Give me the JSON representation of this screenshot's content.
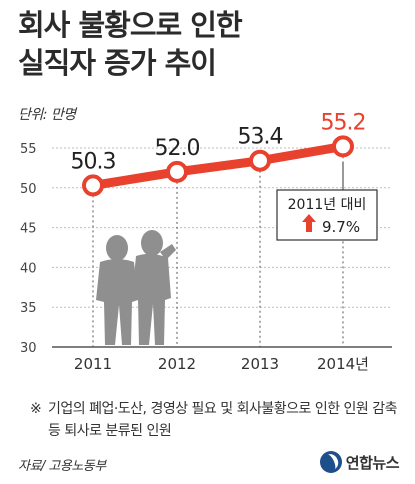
{
  "title_lines": [
    "회사 불황으로 인한",
    "실직자 증가 추이"
  ],
  "unit_label": "단위: 만명",
  "callout": {
    "line1": "2011년 대비",
    "arrow": "up-arrow-icon",
    "value": "9.7%"
  },
  "footnote": {
    "mark": "※",
    "text": "기업의 폐업·도산, 경영상 필요 및 회사불황으로 인한 인원 감축 등 퇴사로 분류된 인원"
  },
  "source": "자료/ 고용노동부",
  "logo_text": "연합뉴스",
  "colors": {
    "line": "#e8412e",
    "highlight_label": "#e8412e",
    "gridline": "#bdbdbd",
    "silhouette": "#8f8f8f",
    "text": "#333333"
  },
  "chart_data": {
    "type": "line",
    "categories": [
      "2011",
      "2012",
      "2013",
      "2014년"
    ],
    "values": [
      50.3,
      52.0,
      53.4,
      55.2
    ],
    "value_labels": [
      "50.3",
      "52.0",
      "53.4",
      "55.2"
    ],
    "ylim": [
      30,
      55
    ],
    "yticks": [
      "30",
      "35",
      "40",
      "45",
      "50",
      "55"
    ],
    "ytick_values": [
      30,
      35,
      40,
      45,
      50,
      55
    ],
    "grid": "horizontal",
    "xlabel": "",
    "ylabel": ""
  }
}
